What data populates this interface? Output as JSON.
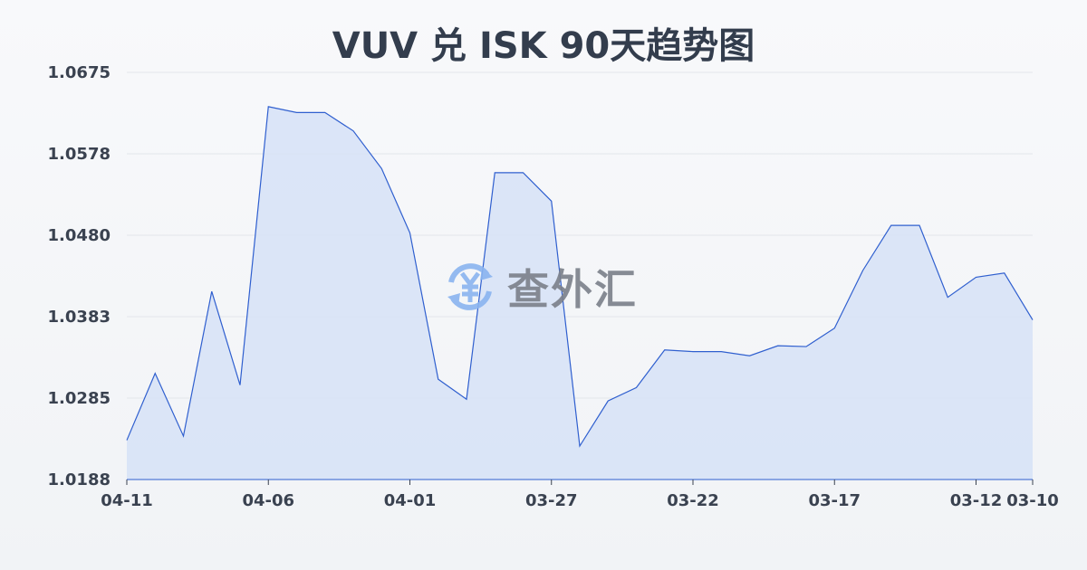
{
  "chart_data": {
    "type": "area",
    "title": "VUV 兑 ISK 90天趋势图",
    "xlabel": "",
    "ylabel": "",
    "x": [
      "04-11",
      "04-10",
      "04-09",
      "04-08",
      "04-07",
      "04-06",
      "04-05",
      "04-04",
      "04-03",
      "04-02",
      "04-01",
      "03-31",
      "03-30",
      "03-29",
      "03-28",
      "03-27",
      "03-26",
      "03-25",
      "03-24",
      "03-23",
      "03-22",
      "03-21",
      "03-20",
      "03-19",
      "03-18",
      "03-17",
      "03-16",
      "03-15",
      "03-14",
      "03-13",
      "03-12",
      "03-11",
      "03-10"
    ],
    "values": [
      1.0235,
      1.0315,
      1.024,
      1.0413,
      1.0301,
      1.0634,
      1.0627,
      1.0627,
      1.0605,
      1.056,
      1.0483,
      1.0308,
      1.0284,
      1.0555,
      1.0555,
      1.0521,
      1.0228,
      1.0282,
      1.0298,
      1.0343,
      1.0341,
      1.0341,
      1.0336,
      1.0348,
      1.0347,
      1.0369,
      1.0438,
      1.0492,
      1.0492,
      1.0406,
      1.043,
      1.0435,
      1.0379
    ],
    "x_tick_labels": [
      "04-11",
      "04-06",
      "04-01",
      "03-27",
      "03-22",
      "03-17",
      "03-12",
      "03-10"
    ],
    "y_tick_labels": [
      "1.0675",
      "1.0578",
      "1.0480",
      "1.0383",
      "1.0285",
      "1.0188"
    ],
    "ylim": [
      1.0188,
      1.0675
    ],
    "grid": true,
    "line_color": "#2f5fcf",
    "fill_color": "#d6e2f7"
  },
  "watermark": {
    "text": "查外汇",
    "icon": "yen-exchange-icon",
    "icon_color": "#8ab4f0"
  }
}
